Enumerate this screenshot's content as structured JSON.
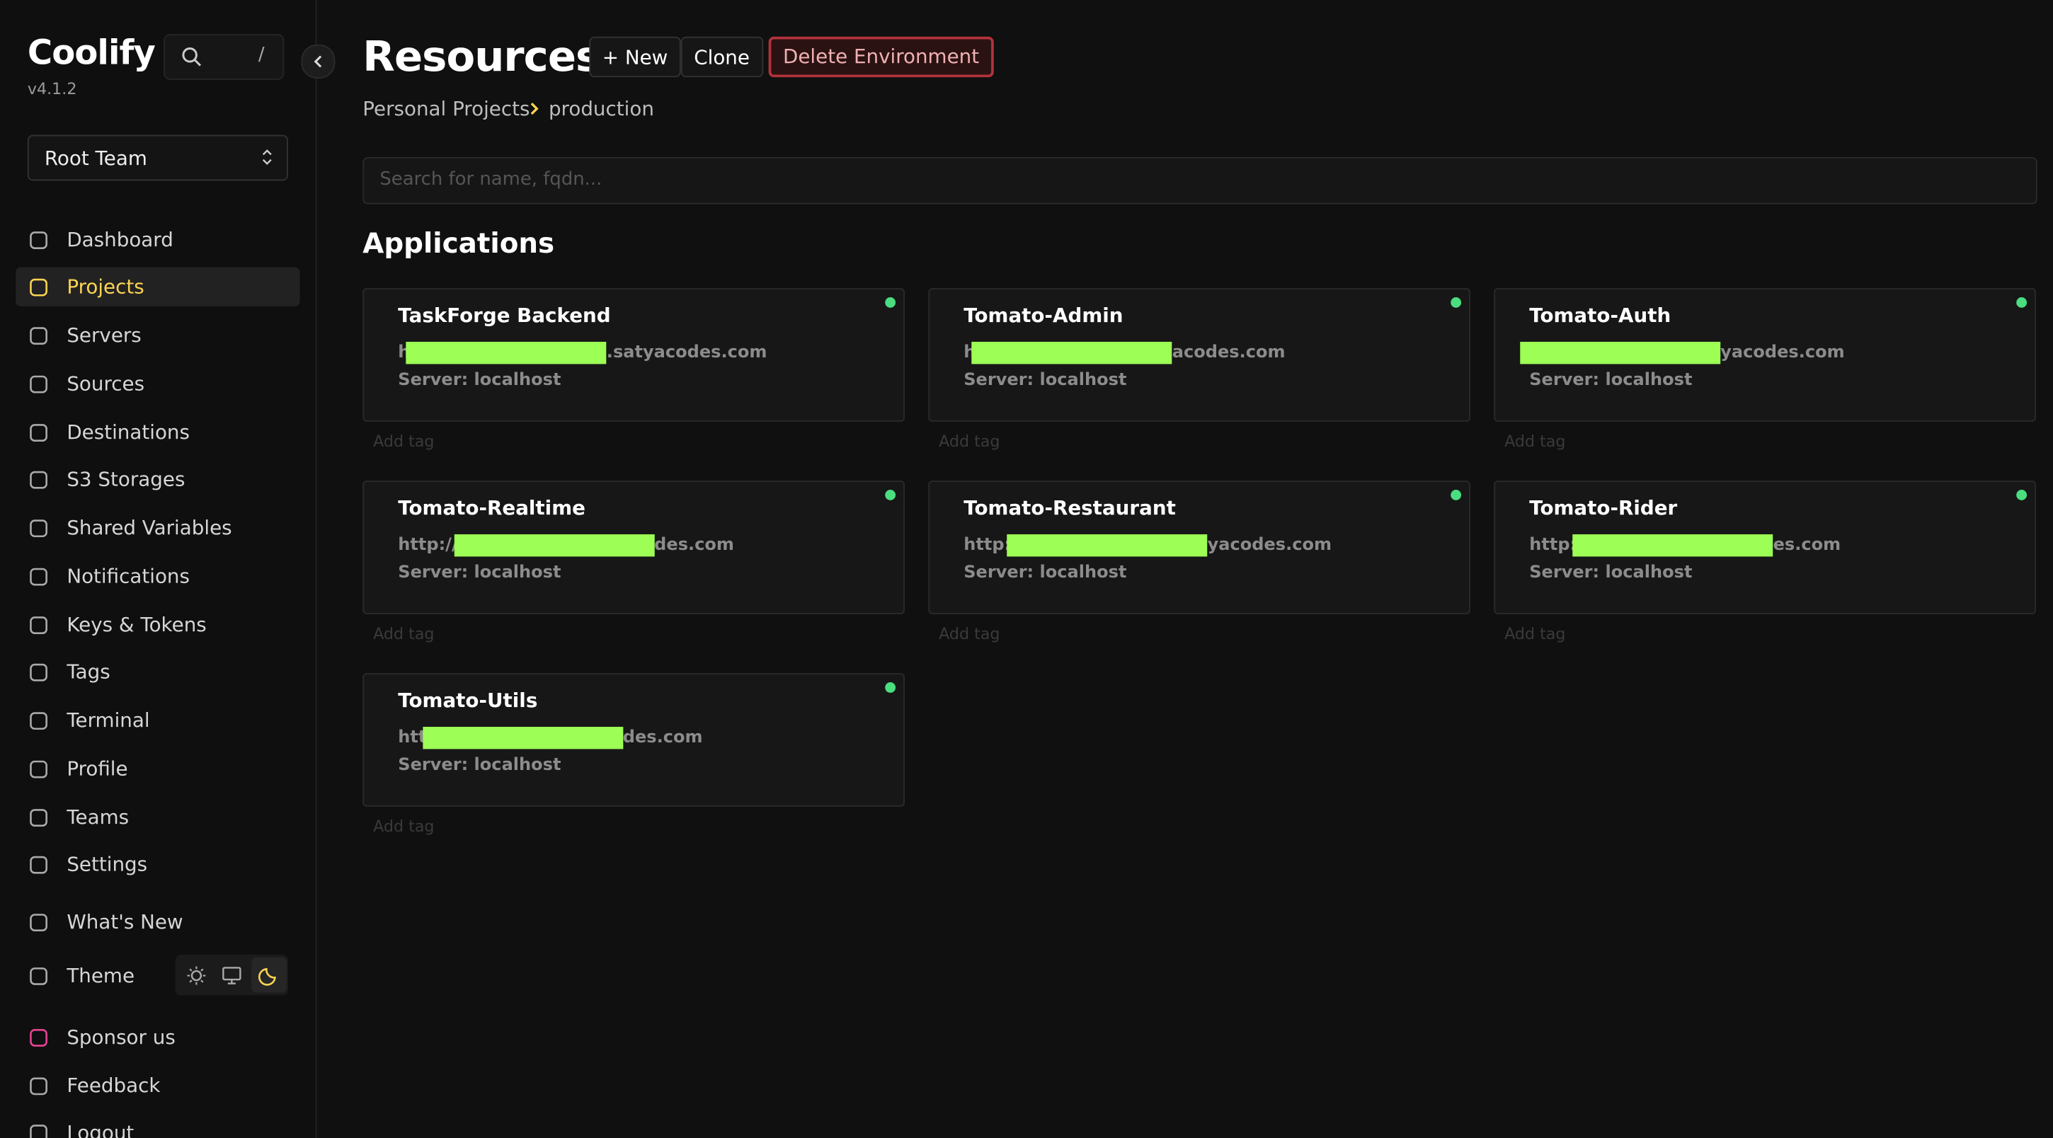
{
  "sidebar": {
    "brand": "Coolify",
    "version": "v4.1.2",
    "search_shortcut": "/",
    "team": "Root Team",
    "nav": [
      "Dashboard",
      "Projects",
      "Servers",
      "Sources",
      "Destinations",
      "S3 Storages",
      "Shared Variables",
      "Notifications",
      "Keys & Tokens",
      "Tags",
      "Terminal",
      "Profile",
      "Teams",
      "Settings"
    ],
    "whats_new": "What's New",
    "theme": "Theme",
    "sponsor": "Sponsor us",
    "feedback": "Feedback",
    "logout": "Logout"
  },
  "header": {
    "title": "Resources",
    "buttons": [
      "+ New",
      "Clone",
      "Delete Environment"
    ],
    "breadcrumb": [
      "Personal Projects",
      "production"
    ],
    "search_placeholder": "Search for name, fqdn..."
  },
  "section": "Applications",
  "add_tag": "Add tag",
  "applications": [
    {
      "name": "TaskForge Backend",
      "url": [
        "h",
        ".satyacodes.com"
      ],
      "server": "Server: localhost"
    },
    {
      "name": "Tomato-Admin",
      "url": [
        "h",
        "acodes.com"
      ],
      "server": "Server: localhost"
    },
    {
      "name": "Tomato-Auth",
      "url": [
        "yacodes.com"
      ],
      "server": "Server: localhost"
    },
    {
      "name": "Tomato-Realtime",
      "url": [
        "http://",
        "des.com"
      ],
      "server": "Server: localhost"
    },
    {
      "name": "Tomato-Restaurant",
      "url": [
        "http:",
        "yacodes.com"
      ],
      "server": "Server: localhost"
    },
    {
      "name": "Tomato-Rider",
      "url": [
        "http:",
        "es.com"
      ],
      "server": "Server: localhost"
    },
    {
      "name": "Tomato-Utils",
      "url": [
        "htt",
        "des.com"
      ],
      "server": "Server: localhost"
    }
  ]
}
